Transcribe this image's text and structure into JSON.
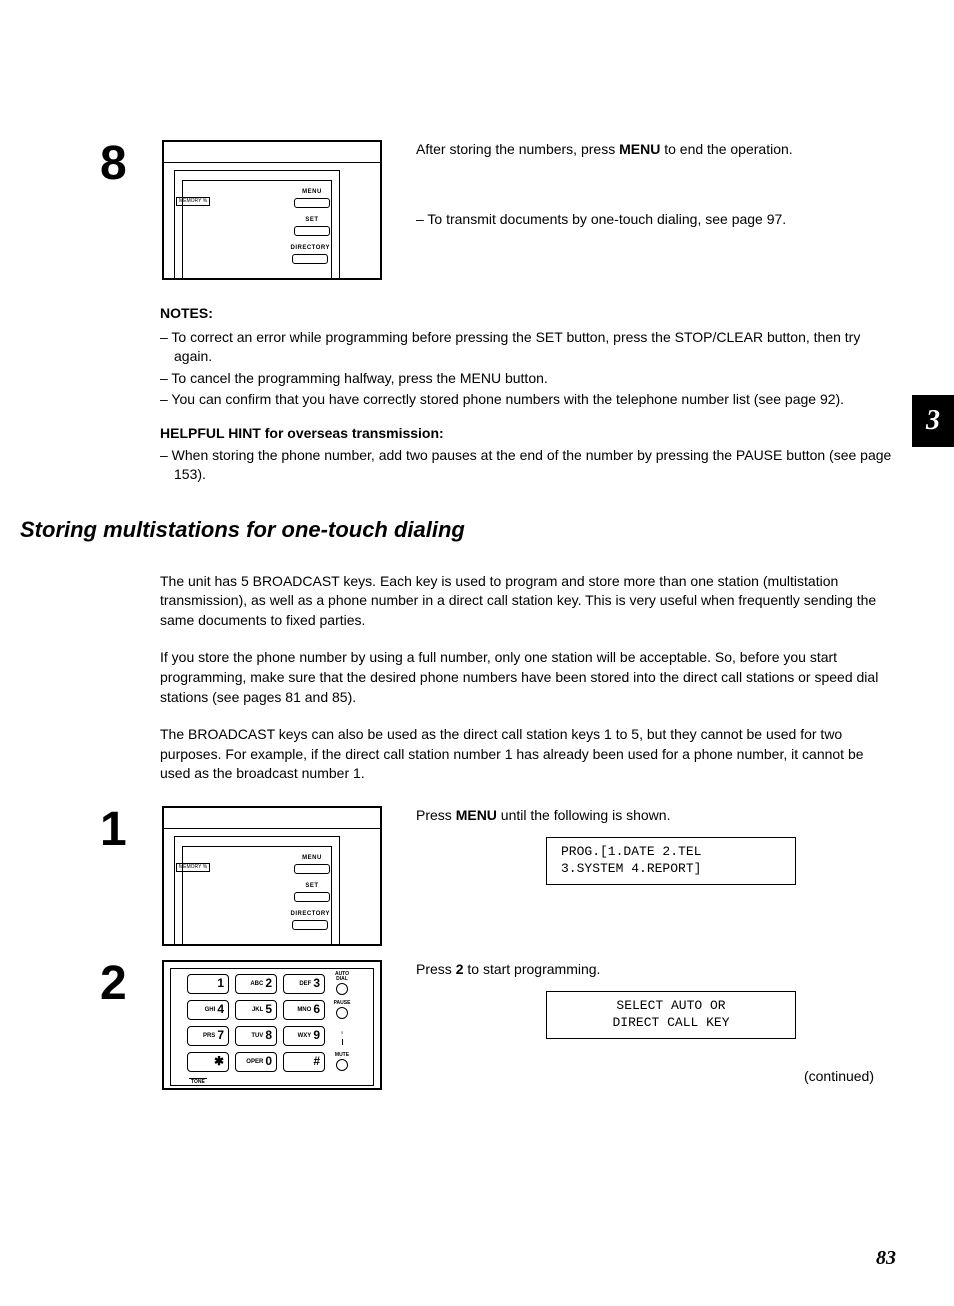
{
  "tab_number": "3",
  "page_number": "83",
  "step8": {
    "number": "8",
    "text_before": "After storing the numbers, press ",
    "text_bold": "MENU",
    "text_after": " to end the operation.",
    "bullet": "– To transmit documents by one-touch dialing, see page 97."
  },
  "panel_buttons": {
    "menu": "MENU",
    "set": "SET",
    "directory": "DIRECTORY",
    "memory": "MEMORY %"
  },
  "notes": {
    "heading": "NOTES:",
    "items": [
      "– To correct an error while programming before pressing the SET button, press the STOP/CLEAR button, then try again.",
      "– To cancel the programming halfway, press the MENU button.",
      "– You can confirm that you have correctly stored phone numbers with the telephone number list (see page 92)."
    ]
  },
  "hint": {
    "heading": "HELPFUL HINT for overseas transmission:",
    "item": "– When storing the phone number, add two pauses at the end of the number by pressing the PAUSE button (see page 153)."
  },
  "section_heading": "Storing multistations for one-touch dialing",
  "paragraphs": [
    "The unit has 5 BROADCAST keys. Each key is used to program and store more than one station (multistation transmission), as well as a phone number in a direct call station key. This is very useful when frequently sending the same documents to fixed parties.",
    "If you store the phone number by using a full number, only one station will be acceptable. So, before you start programming, make sure that the desired phone numbers have been stored into the direct call stations or speed dial stations (see pages 81 and 85).",
    "The BROADCAST keys can also be used as the direct call station keys 1 to 5, but they cannot be used for two purposes. For example, if the direct call station number 1 has already been used for a phone number, it cannot be used as the broadcast number 1."
  ],
  "step1": {
    "number": "1",
    "text_before": "Press ",
    "text_bold": "MENU",
    "text_after": " until the following is shown.",
    "lcd_line1": "PROG.[1.DATE 2.TEL",
    "lcd_line2": "3.SYSTEM 4.REPORT]"
  },
  "step2": {
    "number": "2",
    "text_before": "Press ",
    "text_bold": "2",
    "text_after": " to start programming.",
    "lcd_line1": "SELECT AUTO OR",
    "lcd_line2": "DIRECT CALL KEY"
  },
  "continued": "(continued)",
  "keypad": {
    "keys": [
      {
        "sub": "",
        "dig": "1"
      },
      {
        "sub": "ABC",
        "dig": "2"
      },
      {
        "sub": "DEF",
        "dig": "3"
      },
      {
        "sub": "GHI",
        "dig": "4"
      },
      {
        "sub": "JKL",
        "dig": "5"
      },
      {
        "sub": "MNO",
        "dig": "6"
      },
      {
        "sub": "PRS",
        "dig": "7"
      },
      {
        "sub": "TUV",
        "dig": "8"
      },
      {
        "sub": "WXY",
        "dig": "9"
      },
      {
        "sub": "",
        "dig": "✱"
      },
      {
        "sub": "OPER",
        "dig": "0"
      },
      {
        "sub": "",
        "dig": "#"
      }
    ],
    "side_labels": [
      "AUTO DIAL",
      "PAUSE",
      "",
      "MUTE"
    ],
    "tone": "TONE"
  }
}
